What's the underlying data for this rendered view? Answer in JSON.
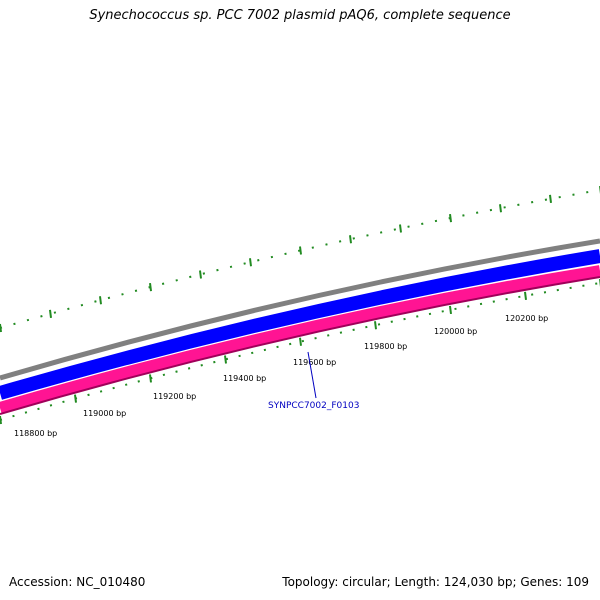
{
  "title": "Synechococcus sp. PCC 7002 plasmid pAQ6, complete sequence",
  "footer": {
    "accession_label": "Accession:",
    "accession": "NC_010480",
    "topology_text": "Topology: circular; Length: 124,030 bp; Genes: 109"
  },
  "colors": {
    "backbone": "#808080",
    "forward_strand": "#0000ff",
    "reverse_strand": "#ff1493",
    "reverse_strand_edge": "#a0005a",
    "ticks": "#228b22",
    "gene_label": "#0000c0"
  },
  "tick_labels": [
    "118800 bp",
    "119000 bp",
    "119200 bp",
    "119400 bp",
    "119600 bp",
    "119800 bp",
    "120000 bp",
    "120200 bp"
  ],
  "gene_label": "SYNPCC7002_F0103"
}
